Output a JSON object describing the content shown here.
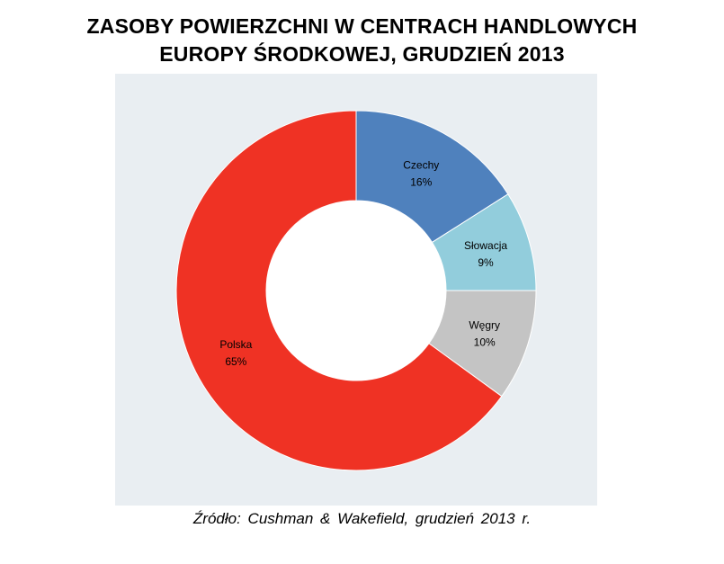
{
  "title_lines": [
    "ZASOBY POWIERZCHNI W CENTRACH HANDLOWYCH",
    "EUROPY ŚRODKOWEJ, GRUDZIEŃ 2013"
  ],
  "source": "Źródło: Cushman & Wakefield, grudzień 2013 r.",
  "colors": {
    "plot_background": "#e9eef2",
    "slice_border": "#ffffff"
  },
  "chart_data": {
    "type": "pie",
    "variant": "doughnut",
    "title": "ZASOBY POWIERZCHNI W CENTRACH HANDLOWYCH EUROPY ŚRODKOWEJ, GRUDZIEŃ 2013",
    "start_angle_deg": 0,
    "direction": "clockwise",
    "slices": [
      {
        "name": "Czechy",
        "value": 16,
        "label": "16%",
        "color": "#4f81bd"
      },
      {
        "name": "Słowacja",
        "value": 9,
        "label": "9%",
        "color": "#92cddc"
      },
      {
        "name": "Węgry",
        "value": 10,
        "label": "10%",
        "color": "#c4c4c4"
      },
      {
        "name": "Polska",
        "value": 65,
        "label": "65%",
        "color": "#ef3224"
      }
    ],
    "legend": "none"
  }
}
